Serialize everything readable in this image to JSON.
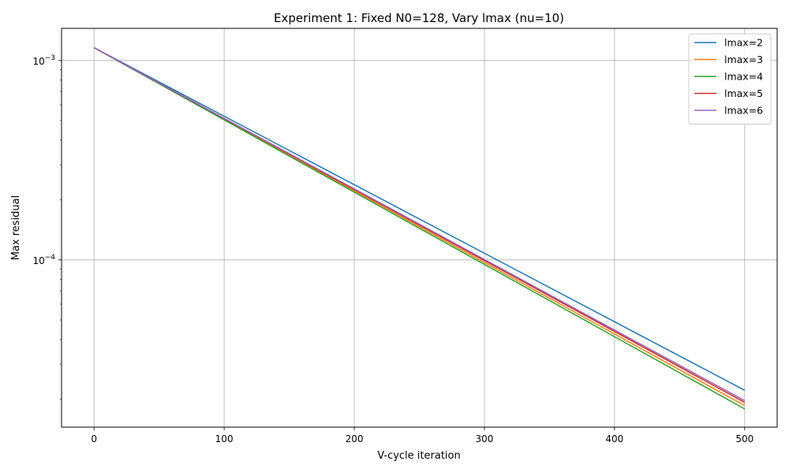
{
  "chart_data": {
    "type": "line",
    "title": "Experiment 1: Fixed N0=128, Vary lmax (nu=10)",
    "xlabel": "V-cycle iteration",
    "ylabel": "Max residual",
    "xlim": [
      -25,
      525
    ],
    "ylim": [
      1.45e-05,
      0.00145
    ],
    "yscale": "log",
    "grid": true,
    "legend_position": "top-right",
    "x_ticks": [
      0,
      100,
      200,
      300,
      400,
      500
    ],
    "x_tick_labels": [
      "0",
      "100",
      "200",
      "300",
      "400",
      "500"
    ],
    "y_ticks": [
      0.0001,
      0.001
    ],
    "y_tick_labels": [
      {
        "base": "10",
        "exp": "−4"
      },
      {
        "base": "10",
        "exp": "−3"
      }
    ],
    "series": [
      {
        "name": "lmax=2",
        "color": "#1f77b4",
        "x": [
          0,
          500
        ],
        "y": [
          0.00116,
          2.22e-05
        ]
      },
      {
        "name": "lmax=3",
        "color": "#ff7f0e",
        "x": [
          0,
          500
        ],
        "y": [
          0.00116,
          1.86e-05
        ]
      },
      {
        "name": "lmax=4",
        "color": "#2ca02c",
        "x": [
          0,
          500
        ],
        "y": [
          0.00116,
          1.79e-05
        ]
      },
      {
        "name": "lmax=5",
        "color": "#d62728",
        "x": [
          0,
          500
        ],
        "y": [
          0.00116,
          1.93e-05
        ]
      },
      {
        "name": "lmax=6",
        "color": "#9467bd",
        "x": [
          0,
          500
        ],
        "y": [
          0.00116,
          1.97e-05
        ]
      }
    ]
  }
}
